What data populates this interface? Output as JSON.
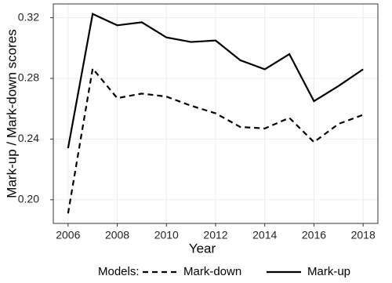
{
  "chart_data": {
    "type": "line",
    "x": [
      2006,
      2007,
      2008,
      2009,
      2010,
      2011,
      2012,
      2013,
      2014,
      2015,
      2016,
      2017,
      2018
    ],
    "series": [
      {
        "name": "Mark-down",
        "color": "#000000",
        "dash": true,
        "values": [
          0.191,
          0.2865,
          0.267,
          0.27,
          0.268,
          0.262,
          0.257,
          0.248,
          0.247,
          0.254,
          0.238,
          0.25,
          0.256
        ]
      },
      {
        "name": "Mark-up",
        "color": "#000000",
        "dash": false,
        "values": [
          0.234,
          0.3225,
          0.315,
          0.317,
          0.307,
          0.304,
          0.305,
          0.292,
          0.286,
          0.296,
          0.265,
          0.275,
          0.286
        ]
      }
    ],
    "xlabel": "Year",
    "ylabel": "Mark-up / Mark-down scores",
    "legend_title": "Models:",
    "xlim": [
      2005.4,
      2018.6
    ],
    "xticks": [
      2006,
      2008,
      2010,
      2012,
      2014,
      2016,
      2018
    ],
    "ylim": [
      0.1844,
      0.3291
    ],
    "yticks": [
      {
        "value": 0.2,
        "label": "0.20"
      },
      0.24,
      0.28,
      0.32
    ],
    "grid": true
  }
}
